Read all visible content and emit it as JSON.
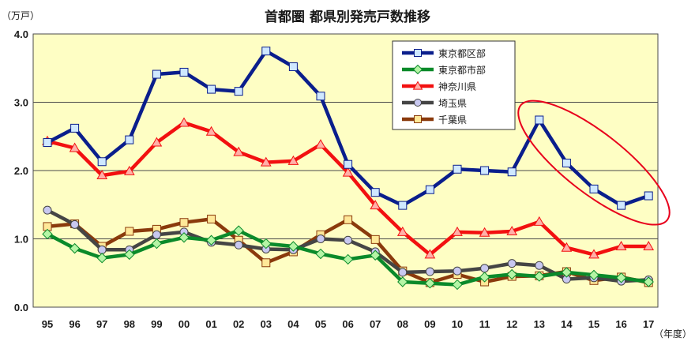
{
  "chart_data": {
    "type": "line",
    "title": "首都圏 都県別発売戸数推移",
    "y_unit": "（万戸）",
    "x_unit": "（年度）",
    "categories": [
      "95",
      "96",
      "97",
      "98",
      "99",
      "00",
      "01",
      "02",
      "03",
      "04",
      "05",
      "06",
      "07",
      "08",
      "09",
      "10",
      "11",
      "12",
      "13",
      "14",
      "15",
      "16",
      "17"
    ],
    "y_ticks": [
      "0.0",
      "1.0",
      "2.0",
      "3.0",
      "4.0"
    ],
    "ylim": [
      0,
      4
    ],
    "grid": "horizontal",
    "legend_position": "top-right",
    "highlight": {
      "shape": "ellipse",
      "color": "#e8001c",
      "range": [
        "13",
        "17"
      ],
      "series": "東京都区部"
    },
    "series": [
      {
        "name": "東京都区部",
        "color": "#0a1e8c",
        "marker": "square",
        "marker_fill": "#cfe8ff",
        "values": [
          2.41,
          2.62,
          2.13,
          2.45,
          3.41,
          3.44,
          3.19,
          3.16,
          3.75,
          3.52,
          3.09,
          2.09,
          1.68,
          1.49,
          1.72,
          2.02,
          2.0,
          1.98,
          2.74,
          2.11,
          1.73,
          1.49,
          1.63
        ]
      },
      {
        "name": "東京都市部",
        "color": "#0a8a2a",
        "marker": "diamond",
        "marker_fill": "#b5f5a5",
        "values": [
          1.07,
          0.86,
          0.72,
          0.77,
          0.93,
          1.02,
          0.98,
          1.12,
          0.93,
          0.89,
          0.78,
          0.7,
          0.76,
          0.37,
          0.35,
          0.33,
          0.44,
          0.48,
          0.45,
          0.51,
          0.47,
          0.43,
          0.37
        ]
      },
      {
        "name": "神奈川県",
        "color": "#f21010",
        "marker": "triangle",
        "marker_fill": "#ffb0a8",
        "values": [
          2.43,
          2.33,
          1.93,
          1.99,
          2.41,
          2.7,
          2.57,
          2.27,
          2.12,
          2.14,
          2.38,
          1.97,
          1.49,
          1.1,
          0.77,
          1.1,
          1.09,
          1.11,
          1.25,
          0.87,
          0.77,
          0.89,
          0.89
        ]
      },
      {
        "name": "埼玉県",
        "color": "#454545",
        "marker": "circle",
        "marker_fill": "#c8c8f0",
        "values": [
          1.42,
          1.21,
          0.84,
          0.84,
          1.06,
          1.1,
          0.95,
          0.91,
          0.85,
          0.84,
          1.0,
          0.98,
          0.81,
          0.51,
          0.52,
          0.53,
          0.57,
          0.64,
          0.61,
          0.41,
          0.43,
          0.38,
          0.4
        ]
      },
      {
        "name": "千葉県",
        "color": "#8a3a0c",
        "marker": "square",
        "marker_fill": "#ffe898",
        "values": [
          1.18,
          1.22,
          0.89,
          1.11,
          1.14,
          1.24,
          1.29,
          0.98,
          0.65,
          0.81,
          1.06,
          1.28,
          0.99,
          0.53,
          0.36,
          0.48,
          0.37,
          0.45,
          0.46,
          0.52,
          0.39,
          0.44,
          0.36
        ]
      }
    ]
  }
}
